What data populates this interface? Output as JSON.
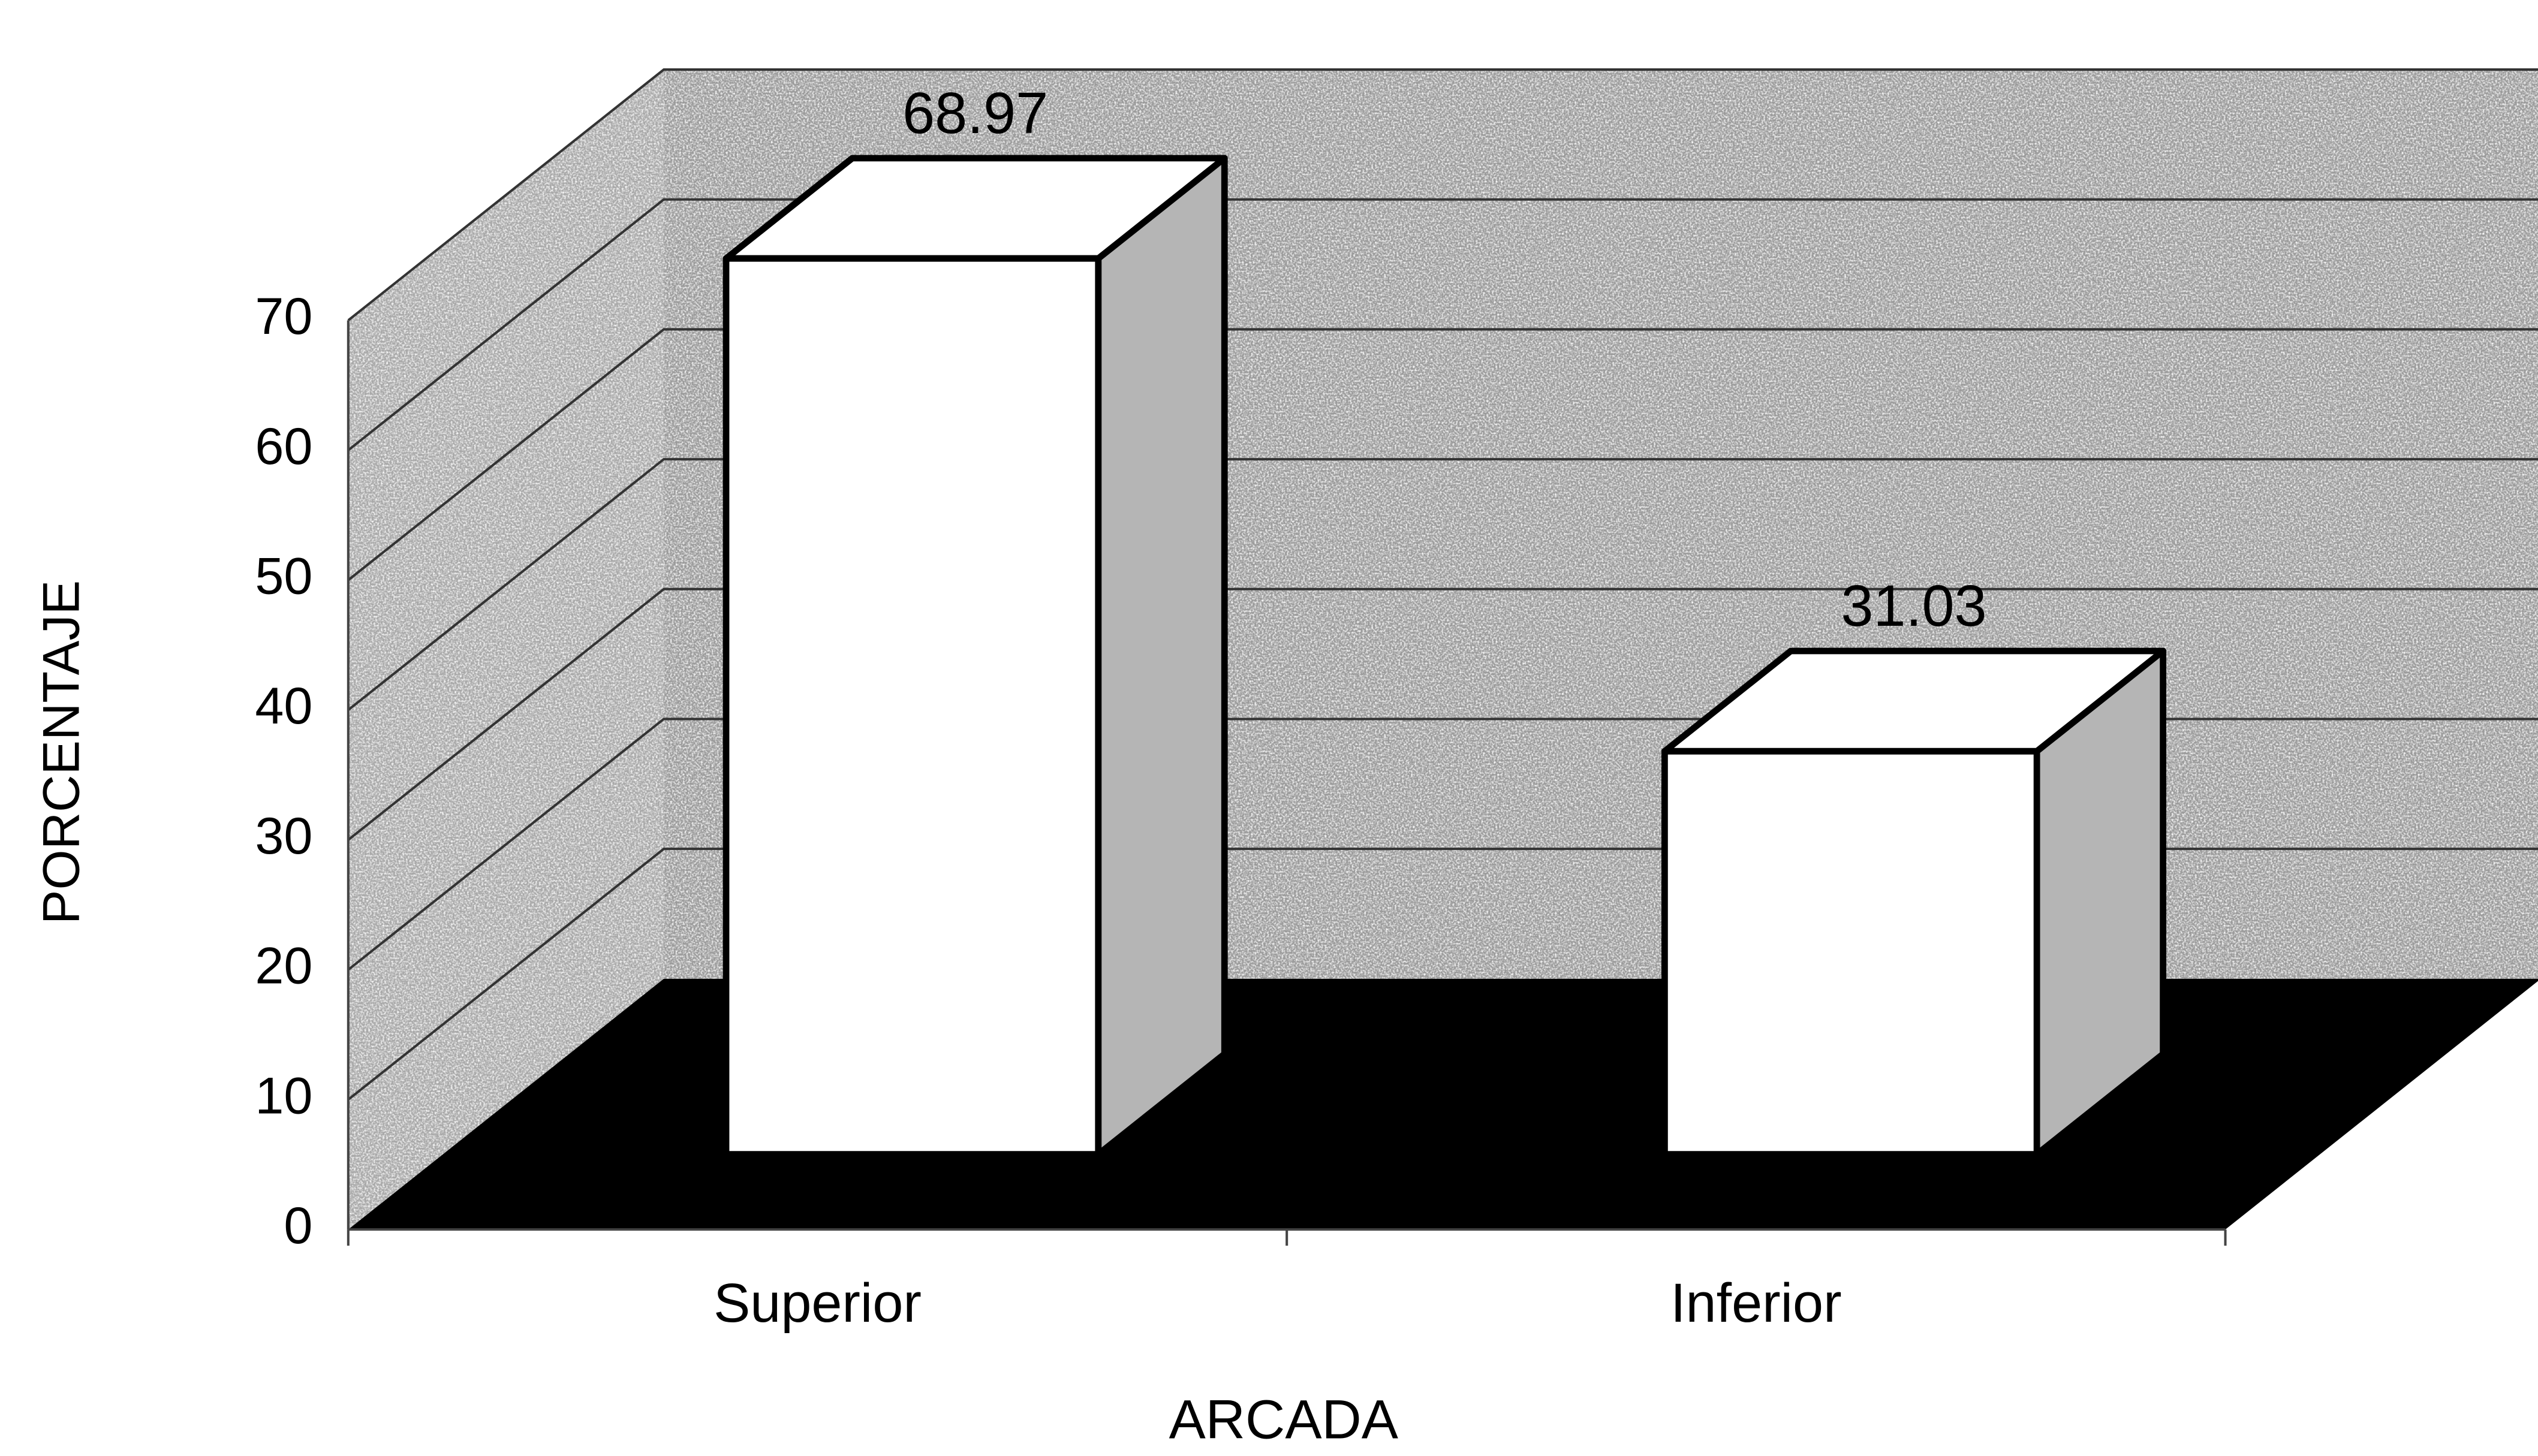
{
  "chart_data": {
    "type": "bar3d",
    "categories": [
      "Superior",
      "Inferior"
    ],
    "values": [
      68.97,
      31.03
    ],
    "color": "#ffffff",
    "xlabel": "ARCADA",
    "ylabel": "PORCENTAJE",
    "ylim": [
      0,
      70
    ],
    "yticks": [
      0,
      10,
      20,
      30,
      40,
      50,
      60,
      70
    ],
    "grid": true
  }
}
